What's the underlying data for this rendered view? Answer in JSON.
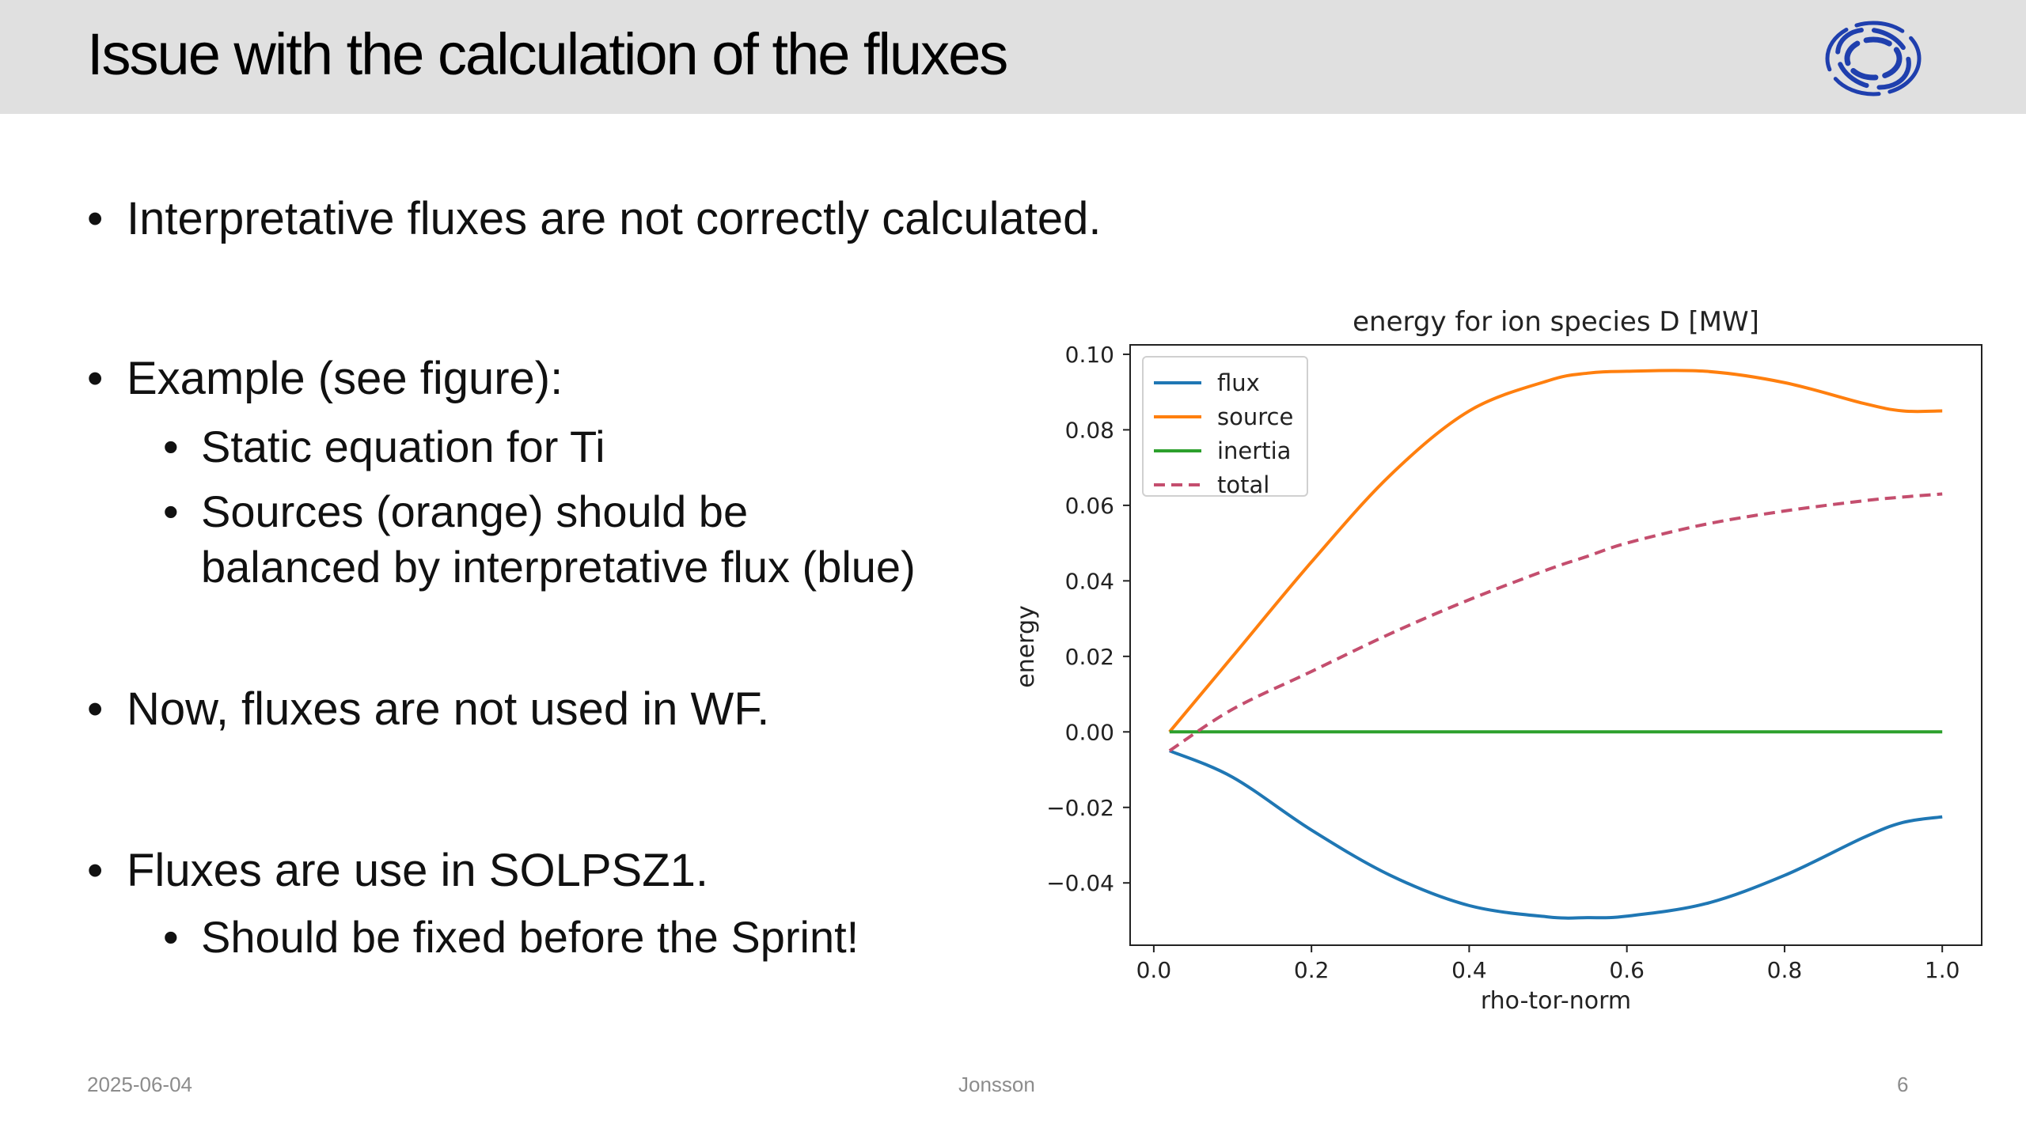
{
  "slide": {
    "title": "Issue with the calculation of the fluxes",
    "logo_icon": "ring-logo-icon",
    "logo_color": "#1f3fae",
    "bullets": {
      "b1": "Interpretative fluxes are not correctly calculated.",
      "b2": "Example (see figure):",
      "b2a": "Static equation for Ti",
      "b2b_line1": "Sources (orange) should be",
      "b2b_line2": "balanced by interpretative flux (blue)",
      "b3": "Now, fluxes are not used in WF.",
      "b4": "Fluxes are use in SOLPSZ1.",
      "b4a": "Should be fixed before the Sprint!"
    }
  },
  "footer": {
    "date": "2025-06-04",
    "author": "Jonsson",
    "page": "6"
  },
  "chart_data": {
    "type": "line",
    "title": "energy for ion species D [MW]",
    "xlabel": "rho-tor-norm",
    "ylabel": "energy",
    "xlim": [
      -0.03,
      1.05
    ],
    "ylim": [
      -0.0565,
      0.1025
    ],
    "xticks": [
      "0.0",
      "0.2",
      "0.4",
      "0.6",
      "0.8",
      "1.0"
    ],
    "xtick_values": [
      0.0,
      0.2,
      0.4,
      0.6,
      0.8,
      1.0
    ],
    "yticks": [
      "−0.04",
      "−0.02",
      "0.00",
      "0.02",
      "0.04",
      "0.06",
      "0.08",
      "0.10"
    ],
    "ytick_values": [
      -0.04,
      -0.02,
      0.0,
      0.02,
      0.04,
      0.06,
      0.08,
      0.1
    ],
    "legend_position": "top-left",
    "grid": false,
    "x": [
      0.02,
      0.1,
      0.2,
      0.3,
      0.4,
      0.5,
      0.55,
      0.6,
      0.7,
      0.8,
      0.9,
      0.95,
      1.0
    ],
    "series": [
      {
        "name": "flux",
        "color": "#1f77b4",
        "style": "solid",
        "values": [
          -0.005,
          -0.012,
          -0.026,
          -0.038,
          -0.046,
          -0.049,
          -0.0492,
          -0.0488,
          -0.0455,
          -0.038,
          -0.028,
          -0.024,
          -0.0225
        ]
      },
      {
        "name": "source",
        "color": "#ff7f0e",
        "style": "solid",
        "values": [
          0.0,
          0.02,
          0.045,
          0.068,
          0.085,
          0.093,
          0.095,
          0.0955,
          0.0955,
          0.0925,
          0.087,
          0.085,
          0.085
        ]
      },
      {
        "name": "inertia",
        "color": "#2ca02c",
        "style": "solid",
        "values": [
          0,
          0,
          0,
          0,
          0,
          0,
          0,
          0,
          0,
          0,
          0,
          0,
          0
        ]
      },
      {
        "name": "total",
        "color": "#c44e6e",
        "style": "dashed",
        "values": [
          -0.005,
          0.006,
          0.016,
          0.026,
          0.035,
          0.043,
          0.0465,
          0.05,
          0.055,
          0.0585,
          0.0612,
          0.0622,
          0.063
        ]
      }
    ]
  }
}
